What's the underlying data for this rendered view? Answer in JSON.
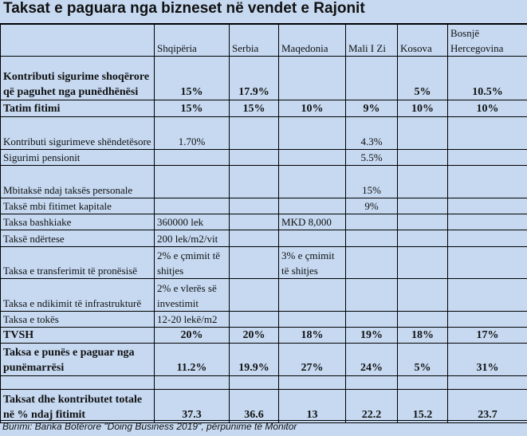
{
  "title": "Taksat e paguara nga bizneset në vendet e Rajonit",
  "table": {
    "header": [
      "Shqipëria",
      "Serbia",
      "Maqedonia",
      "Mali I Zi",
      "Kosova",
      "Bosnjë Hercegovina"
    ],
    "rows": [
      {
        "label": "Kontributi sigurime shoqërore që paguhet nga punëdhënësi",
        "cells": [
          "15%",
          "17.9%",
          null,
          null,
          "5%",
          "10.5%"
        ]
      },
      {
        "label": "Tatim fitimi",
        "cells": [
          "15%",
          "15%",
          "10%",
          "9%",
          "10%",
          "10%"
        ]
      },
      {
        "label": "Kontributi sigurimeve shëndetësore",
        "cells": [
          "1.70%",
          null,
          null,
          "4.3%",
          null,
          null
        ]
      },
      {
        "label": "Sigurimi pensionit",
        "cells": [
          null,
          null,
          null,
          "5.5%",
          null,
          null
        ]
      },
      {
        "label": "Mbitaksë ndaj taksës personale",
        "cells": [
          null,
          null,
          null,
          "15%",
          null,
          null
        ]
      },
      {
        "label": "Taksë mbi fitimet kapitale",
        "cells": [
          null,
          null,
          null,
          "9%",
          null,
          null
        ]
      },
      {
        "label": "Taksa bashkiake",
        "cells": [
          "360000 lek",
          null,
          "MKD 8,000",
          null,
          null,
          null
        ]
      },
      {
        "label": "Taksë ndërtese",
        "cells": [
          "200 lek/m2/vit",
          null,
          null,
          null,
          null,
          null
        ]
      },
      {
        "label": "Taksa e transferimit të pronësisë",
        "cells": [
          "2% e çmimit të shitjes",
          null,
          "3% e çmimit të shitjes",
          null,
          null,
          null
        ]
      },
      {
        "label": "Taksa e ndikimit të infrastrukturë",
        "cells": [
          "2% e vlerës së investimit",
          null,
          null,
          null,
          null,
          null
        ]
      },
      {
        "label": "Taksa e tokës",
        "cells": [
          "12-20 lekë/m2",
          null,
          null,
          null,
          null,
          null
        ]
      },
      {
        "label": "TVSH",
        "cells": [
          "20%",
          "20%",
          "18%",
          "19%",
          "18%",
          "17%"
        ]
      },
      {
        "label": "Taksa e punës e paguar nga punëmarrësi",
        "cells": [
          "11.2%",
          "19.9%",
          "27%",
          "24%",
          "5%",
          "31%"
        ]
      },
      {
        "label": "Taksat dhe kontributet totale në % ndaj fitimit",
        "cells": [
          "37.3",
          "36.6",
          "13",
          "22.2",
          "15.2",
          "23.7"
        ]
      }
    ]
  },
  "source": "Burimi: Banka Botërore \"Doing Business 2019\", përpunime të Monitor"
}
